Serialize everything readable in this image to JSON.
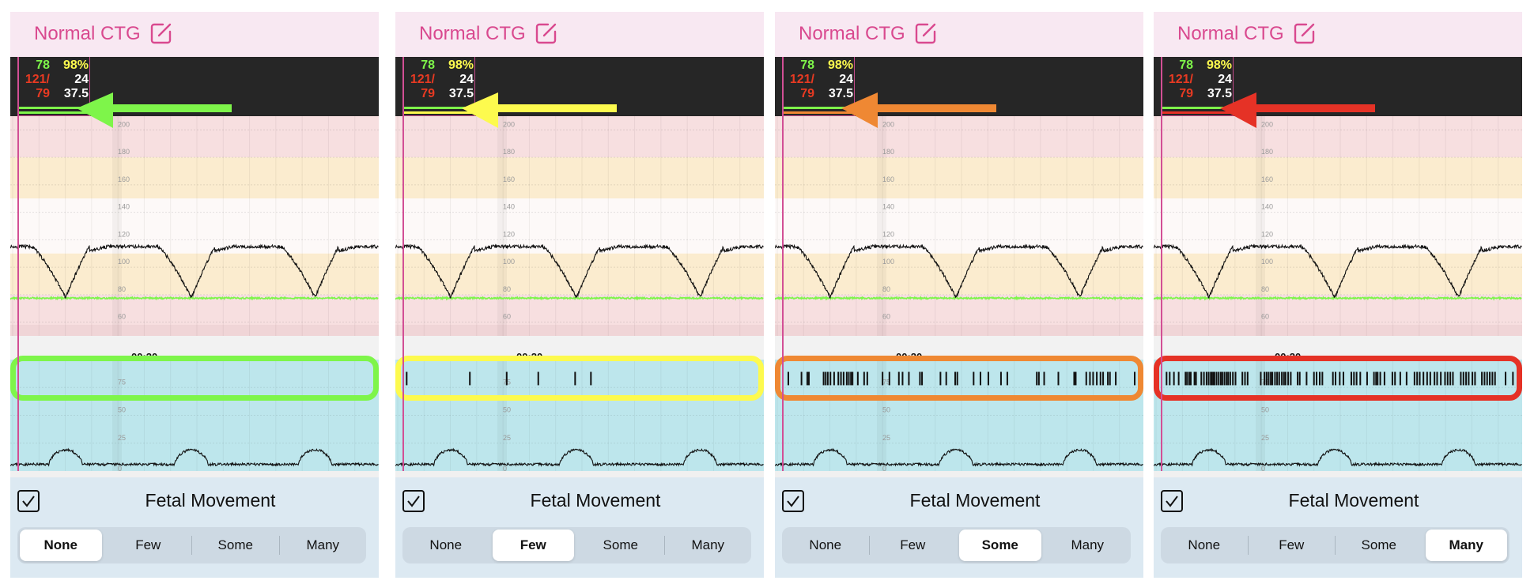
{
  "colors": {
    "title": "#d9498f",
    "hr_green": "#7ef54a",
    "spo2_yellow": "#fdfa4e",
    "bp_red": "#e83a22",
    "white": "#ffffff",
    "cursor": "#d24f95"
  },
  "panels": [
    {
      "title": "Normal CTG",
      "edit_icon": "edit-icon",
      "vitals": {
        "hr": "78",
        "spo2": "98%",
        "bp_sys": "121/",
        "resp": "24",
        "bp_dia": "79",
        "temp": "37.5"
      },
      "accent": "#7ef54a",
      "time_label": "00:20",
      "fetal_movement": {
        "label": "Fetal Movement",
        "checked": true,
        "options": [
          "None",
          "Few",
          "Some",
          "Many"
        ],
        "selected": "None"
      },
      "movement_marks_s": []
    },
    {
      "title": "Normal CTG",
      "edit_icon": "edit-icon",
      "vitals": {
        "hr": "78",
        "spo2": "98%",
        "bp_sys": "121/",
        "resp": "24",
        "bp_dia": "79",
        "temp": "37.5"
      },
      "accent": "#fdfa4e",
      "time_label": "00:20",
      "fetal_movement": {
        "label": "Fetal Movement",
        "checked": true,
        "options": [
          "None",
          "Few",
          "Some",
          "Many"
        ],
        "selected": "Few"
      },
      "movement_marks_s": [
        2,
        14,
        21,
        27,
        34,
        37
      ]
    },
    {
      "title": "Normal CTG",
      "edit_icon": "edit-icon",
      "vitals": {
        "hr": "78",
        "spo2": "98%",
        "bp_sys": "121/",
        "resp": "24",
        "bp_dia": "79",
        "temp": "37.5"
      },
      "accent": "#ef8833",
      "time_label": "00:20",
      "fetal_movement": {
        "label": "Fetal Movement",
        "checked": true,
        "options": [
          "None",
          "Few",
          "Some",
          "Many"
        ],
        "selected": "Some"
      },
      "movement_marks_s": [
        2.4,
        4.9,
        6.0,
        6.3,
        9.1,
        9.5,
        9.9,
        10.4,
        11.1,
        11.9,
        12.4,
        12.9,
        13.5,
        13.9,
        14.3,
        14.6,
        15.6,
        16.8,
        17.4,
        20.3,
        21.6,
        23.4,
        24.1,
        25.3,
        27.4,
        27.8,
        31.3,
        32.4,
        34.1,
        34.5,
        37.6,
        38.9,
        40.4,
        42.8,
        44.0,
        49.6,
        50.0,
        51.0,
        53.7,
        56.7,
        57.0,
        59.0,
        59.7,
        60.3,
        61.0,
        61.7,
        62.2,
        63.1,
        63.5,
        64.6,
        68.2
      ]
    },
    {
      "title": "Normal CTG",
      "edit_icon": "edit-icon",
      "vitals": {
        "hr": "78",
        "spo2": "98%",
        "bp_sys": "121/",
        "resp": "24",
        "bp_dia": "79",
        "temp": "37.5"
      },
      "accent": "#e53226",
      "time_label": "00:20",
      "fetal_movement": {
        "label": "Fetal Movement",
        "checked": true,
        "options": [
          "None",
          "Few",
          "Some",
          "Many"
        ],
        "selected": "Many"
      },
      "movement_marks_s": [
        2.3,
        2.9,
        3.7,
        4.6,
        5.9,
        6.2,
        6.6,
        6.9,
        7.6,
        7.9,
        8.9,
        9.4,
        9.9,
        10.3,
        10.7,
        10.9,
        11.2,
        11.4,
        11.8,
        12.2,
        12.6,
        12.9,
        13.3,
        13.7,
        14.0,
        14.4,
        14.9,
        15.4,
        16.7,
        17.2,
        17.7,
        20.2,
        20.9,
        21.3,
        21.7,
        22.1,
        22.4,
        22.9,
        23.3,
        23.7,
        24.2,
        24.6,
        24.9,
        25.4,
        25.9,
        27.2,
        27.6,
        28.9,
        30.3,
        30.8,
        31.4,
        31.9,
        33.9,
        34.4,
        35.2,
        35.9,
        37.4,
        37.9,
        38.4,
        39.1,
        40.4,
        41.7,
        42.1,
        42.4,
        42.9,
        43.7,
        45.2,
        45.7,
        46.7,
        47.9,
        49.4,
        49.9,
        50.4,
        51.1,
        51.8,
        52.4,
        53.2,
        53.7,
        54.4,
        55.2,
        55.7,
        56.2,
        56.7,
        58.2,
        58.7,
        59.2,
        59.7,
        60.4,
        60.9,
        62.2,
        62.7,
        63.2,
        63.7,
        64.2,
        64.7,
        66.7,
        68.1
      ]
    }
  ],
  "chart": {
    "time_range_s": [
      0,
      70
    ],
    "fhr_axis": {
      "range": [
        50,
        210
      ],
      "ticks": [
        200,
        180,
        160,
        140,
        120,
        100,
        80,
        60
      ]
    },
    "fhr_bands": [
      {
        "from": 180,
        "to": 210,
        "color": "#f7dfe0"
      },
      {
        "from": 150,
        "to": 180,
        "color": "#fbeccf"
      },
      {
        "from": 110,
        "to": 150,
        "color": "#fdf9f8"
      },
      {
        "from": 80,
        "to": 110,
        "color": "#fbeccf"
      },
      {
        "from": 50,
        "to": 80,
        "color": "#f7dfe0"
      }
    ],
    "fhr_baseline_bpm": 115,
    "fhr_decel_nadir_bpm": 78,
    "decel_times_s": [
      10.5,
      34.4,
      57.9
    ],
    "maternal_hr_bpm": 78,
    "toco_axis": {
      "range": [
        0,
        100
      ],
      "ticks": [
        75,
        50,
        25,
        0
      ]
    },
    "toco_baseline": 6,
    "toco_peak": 19,
    "toco_color": "#bde6ec"
  }
}
